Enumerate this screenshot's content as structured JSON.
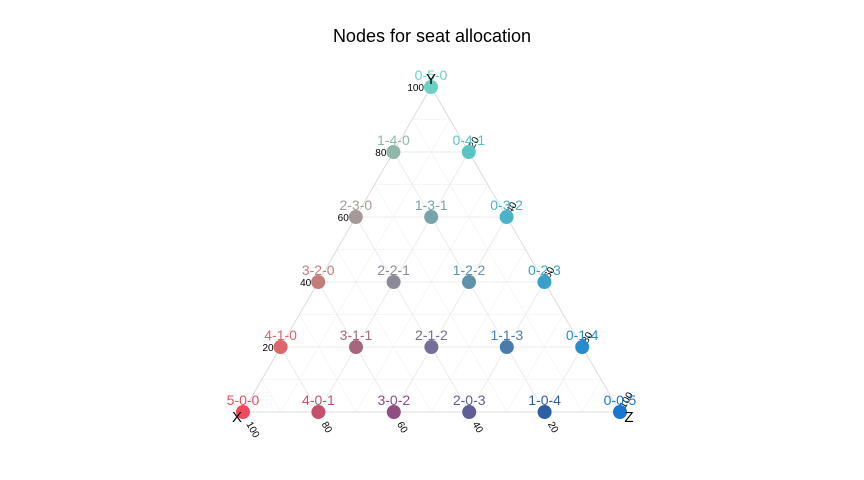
{
  "chart_data": {
    "type": "scatter",
    "subtype": "ternary",
    "title": "Nodes for seat allocation",
    "axes": {
      "x": {
        "label": "X",
        "ticks": [
          "20",
          "40",
          "60",
          "80",
          "100"
        ]
      },
      "y": {
        "label": "Y",
        "ticks": [
          "20",
          "40",
          "60",
          "80",
          "100"
        ]
      },
      "z": {
        "label": "Z",
        "ticks": [
          "20",
          "40",
          "60",
          "80",
          "100"
        ]
      }
    },
    "range": [
      0,
      100
    ],
    "grid": true,
    "legend": false,
    "points": [
      {
        "label": "5-0-0",
        "x": 100,
        "y": 0,
        "z": 0,
        "color": "#F04A5E"
      },
      {
        "label": "4-1-0",
        "x": 80,
        "y": 20,
        "z": 0,
        "color": "#DC6669"
      },
      {
        "label": "4-0-1",
        "x": 80,
        "y": 0,
        "z": 20,
        "color": "#C4506C"
      },
      {
        "label": "3-2-0",
        "x": 60,
        "y": 40,
        "z": 0,
        "color": "#C37C7A"
      },
      {
        "label": "3-1-1",
        "x": 60,
        "y": 20,
        "z": 20,
        "color": "#A5667E"
      },
      {
        "label": "3-0-2",
        "x": 60,
        "y": 0,
        "z": 40,
        "color": "#8F4E7F"
      },
      {
        "label": "2-3-0",
        "x": 40,
        "y": 60,
        "z": 0,
        "color": "#A59A97"
      },
      {
        "label": "2-2-1",
        "x": 40,
        "y": 40,
        "z": 20,
        "color": "#8C8A99"
      },
      {
        "label": "2-1-2",
        "x": 40,
        "y": 20,
        "z": 40,
        "color": "#756E98"
      },
      {
        "label": "2-0-3",
        "x": 40,
        "y": 0,
        "z": 60,
        "color": "#615D99"
      },
      {
        "label": "1-4-0",
        "x": 20,
        "y": 80,
        "z": 0,
        "color": "#91B7AA"
      },
      {
        "label": "1-3-1",
        "x": 20,
        "y": 60,
        "z": 20,
        "color": "#78A3AB"
      },
      {
        "label": "1-2-2",
        "x": 20,
        "y": 40,
        "z": 40,
        "color": "#5F92AD"
      },
      {
        "label": "1-1-3",
        "x": 20,
        "y": 20,
        "z": 60,
        "color": "#4A7BAA"
      },
      {
        "label": "1-0-4",
        "x": 20,
        "y": 0,
        "z": 80,
        "color": "#2E5FA5"
      },
      {
        "label": "0-5-0",
        "x": 0,
        "y": 100,
        "z": 0,
        "color": "#6BD2C3"
      },
      {
        "label": "0-4-1",
        "x": 0,
        "y": 80,
        "z": 20,
        "color": "#5AC4C4"
      },
      {
        "label": "0-3-2",
        "x": 0,
        "y": 60,
        "z": 40,
        "color": "#4BB2C7"
      },
      {
        "label": "0-2-3",
        "x": 0,
        "y": 40,
        "z": 60,
        "color": "#3AA0CA"
      },
      {
        "label": "0-1-4",
        "x": 0,
        "y": 20,
        "z": 80,
        "color": "#2A8BCC"
      },
      {
        "label": "0-0-5",
        "x": 0,
        "y": 0,
        "z": 100,
        "color": "#1877CF"
      }
    ]
  }
}
